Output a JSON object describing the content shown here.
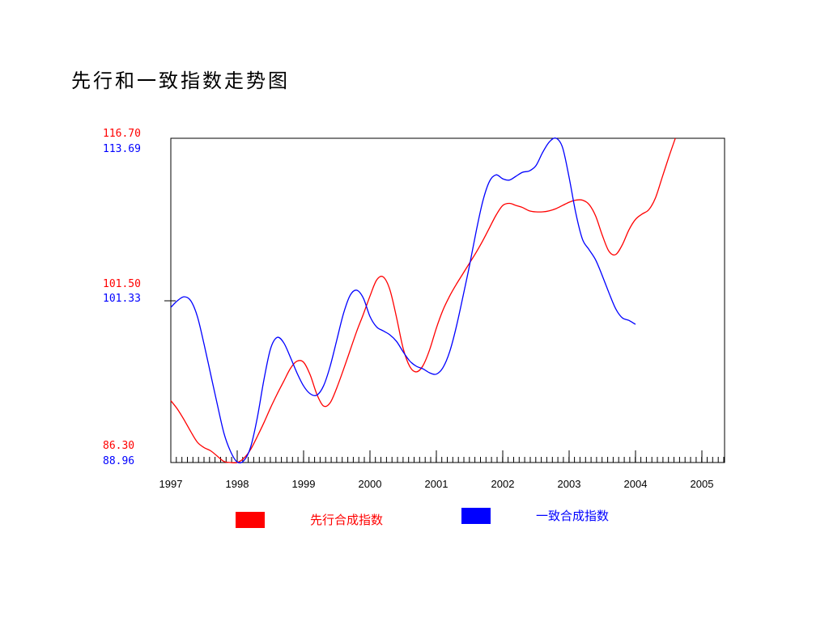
{
  "title": "先行和一致指数走势图",
  "chart_data": {
    "type": "line",
    "title": "先行和一致指数走势图",
    "x_tick_labels": [
      "1997",
      "1998",
      "1999",
      "2000",
      "2001",
      "2002",
      "2003",
      "2004",
      "2005"
    ],
    "x_range": [
      1997.0,
      2005.35
    ],
    "left_axis": {
      "series_index": 0,
      "color": "#ff0000",
      "max_label": "116.70",
      "mid_label": "101.50",
      "min_label": "86.30",
      "range": [
        86.3,
        116.7
      ]
    },
    "right_axis": {
      "series_index": 1,
      "color": "#0000ff",
      "max_label": "113.69",
      "mid_label": "101.33",
      "min_label": "88.96",
      "range": [
        88.96,
        113.69
      ]
    },
    "grid": false,
    "legend_position": "bottom",
    "series": [
      {
        "name": "先行合成指数",
        "color": "#ff0000",
        "points": [
          [
            1997.0,
            92.1
          ],
          [
            1997.1,
            91.3
          ],
          [
            1997.2,
            90.3
          ],
          [
            1997.3,
            89.2
          ],
          [
            1997.4,
            88.2
          ],
          [
            1997.5,
            87.7
          ],
          [
            1997.6,
            87.4
          ],
          [
            1997.7,
            86.9
          ],
          [
            1997.8,
            86.4
          ],
          [
            1997.9,
            86.3
          ],
          [
            1998.0,
            86.3
          ],
          [
            1998.1,
            86.7
          ],
          [
            1998.2,
            87.5
          ],
          [
            1998.3,
            88.7
          ],
          [
            1998.4,
            90.0
          ],
          [
            1998.5,
            91.4
          ],
          [
            1998.6,
            92.7
          ],
          [
            1998.7,
            93.9
          ],
          [
            1998.8,
            95.1
          ],
          [
            1998.9,
            95.8
          ],
          [
            1999.0,
            95.7
          ],
          [
            1999.1,
            94.5
          ],
          [
            1999.2,
            92.7
          ],
          [
            1999.3,
            91.6
          ],
          [
            1999.4,
            91.9
          ],
          [
            1999.5,
            93.3
          ],
          [
            1999.6,
            95.0
          ],
          [
            1999.7,
            96.8
          ],
          [
            1999.8,
            98.6
          ],
          [
            1999.9,
            100.2
          ],
          [
            2000.0,
            101.9
          ],
          [
            2000.1,
            103.4
          ],
          [
            2000.2,
            103.7
          ],
          [
            2000.3,
            102.5
          ],
          [
            2000.4,
            99.9
          ],
          [
            2000.5,
            97.0
          ],
          [
            2000.6,
            95.3
          ],
          [
            2000.7,
            94.8
          ],
          [
            2000.8,
            95.4
          ],
          [
            2000.9,
            96.9
          ],
          [
            2001.0,
            98.9
          ],
          [
            2001.1,
            100.6
          ],
          [
            2001.2,
            101.9
          ],
          [
            2001.3,
            103.0
          ],
          [
            2001.4,
            104.0
          ],
          [
            2001.5,
            105.0
          ],
          [
            2001.6,
            106.0
          ],
          [
            2001.7,
            107.1
          ],
          [
            2001.8,
            108.3
          ],
          [
            2001.9,
            109.5
          ],
          [
            2002.0,
            110.4
          ],
          [
            2002.1,
            110.6
          ],
          [
            2002.2,
            110.4
          ],
          [
            2002.3,
            110.2
          ],
          [
            2002.4,
            109.9
          ],
          [
            2002.5,
            109.8
          ],
          [
            2002.6,
            109.8
          ],
          [
            2002.7,
            109.9
          ],
          [
            2002.8,
            110.1
          ],
          [
            2002.9,
            110.4
          ],
          [
            2003.0,
            110.7
          ],
          [
            2003.1,
            110.9
          ],
          [
            2003.2,
            110.9
          ],
          [
            2003.3,
            110.5
          ],
          [
            2003.4,
            109.4
          ],
          [
            2003.5,
            107.6
          ],
          [
            2003.6,
            106.1
          ],
          [
            2003.7,
            105.8
          ],
          [
            2003.8,
            106.7
          ],
          [
            2003.9,
            108.1
          ],
          [
            2004.0,
            109.1
          ],
          [
            2004.1,
            109.6
          ],
          [
            2004.2,
            110.0
          ],
          [
            2004.3,
            111.1
          ],
          [
            2004.4,
            113.0
          ],
          [
            2004.5,
            114.9
          ],
          [
            2004.6,
            116.7
          ]
        ]
      },
      {
        "name": "一致合成指数",
        "color": "#0000ff",
        "points": [
          [
            1997.0,
            100.8
          ],
          [
            1997.1,
            101.3
          ],
          [
            1997.2,
            101.6
          ],
          [
            1997.3,
            101.3
          ],
          [
            1997.4,
            100.1
          ],
          [
            1997.5,
            98.0
          ],
          [
            1997.6,
            95.7
          ],
          [
            1997.7,
            93.4
          ],
          [
            1997.8,
            91.2
          ],
          [
            1997.9,
            89.8
          ],
          [
            1998.0,
            89.0
          ],
          [
            1998.1,
            89.1
          ],
          [
            1998.2,
            90.1
          ],
          [
            1998.3,
            92.3
          ],
          [
            1998.4,
            95.2
          ],
          [
            1998.5,
            97.6
          ],
          [
            1998.6,
            98.5
          ],
          [
            1998.7,
            98.1
          ],
          [
            1998.8,
            97.0
          ],
          [
            1998.9,
            95.8
          ],
          [
            1999.0,
            94.8
          ],
          [
            1999.1,
            94.2
          ],
          [
            1999.2,
            94.1
          ],
          [
            1999.3,
            94.8
          ],
          [
            1999.4,
            96.3
          ],
          [
            1999.5,
            98.3
          ],
          [
            1999.6,
            100.3
          ],
          [
            1999.7,
            101.7
          ],
          [
            1999.8,
            102.1
          ],
          [
            1999.9,
            101.5
          ],
          [
            2000.0,
            100.1
          ],
          [
            2000.1,
            99.3
          ],
          [
            2000.2,
            99.0
          ],
          [
            2000.3,
            98.7
          ],
          [
            2000.4,
            98.2
          ],
          [
            2000.5,
            97.4
          ],
          [
            2000.6,
            96.7
          ],
          [
            2000.7,
            96.3
          ],
          [
            2000.8,
            96.1
          ],
          [
            2000.9,
            95.8
          ],
          [
            2001.0,
            95.7
          ],
          [
            2001.1,
            96.2
          ],
          [
            2001.2,
            97.4
          ],
          [
            2001.3,
            99.3
          ],
          [
            2001.4,
            101.6
          ],
          [
            2001.5,
            104.0
          ],
          [
            2001.6,
            106.6
          ],
          [
            2001.7,
            108.9
          ],
          [
            2001.8,
            110.4
          ],
          [
            2001.9,
            110.9
          ],
          [
            2002.0,
            110.6
          ],
          [
            2002.1,
            110.5
          ],
          [
            2002.2,
            110.8
          ],
          [
            2002.3,
            111.1
          ],
          [
            2002.4,
            111.2
          ],
          [
            2002.5,
            111.6
          ],
          [
            2002.6,
            112.6
          ],
          [
            2002.7,
            113.4
          ],
          [
            2002.8,
            113.7
          ],
          [
            2002.9,
            113.0
          ],
          [
            2003.0,
            110.7
          ],
          [
            2003.1,
            108.0
          ],
          [
            2003.2,
            106.0
          ],
          [
            2003.3,
            105.2
          ],
          [
            2003.4,
            104.4
          ],
          [
            2003.5,
            103.2
          ],
          [
            2003.6,
            101.9
          ],
          [
            2003.7,
            100.7
          ],
          [
            2003.8,
            100.0
          ],
          [
            2003.9,
            99.8
          ],
          [
            2004.0,
            99.5
          ]
        ]
      }
    ]
  },
  "legend": [
    {
      "label": "先行合成指数",
      "color": "#ff0000"
    },
    {
      "label": "一致合成指数",
      "color": "#0000ff"
    }
  ]
}
